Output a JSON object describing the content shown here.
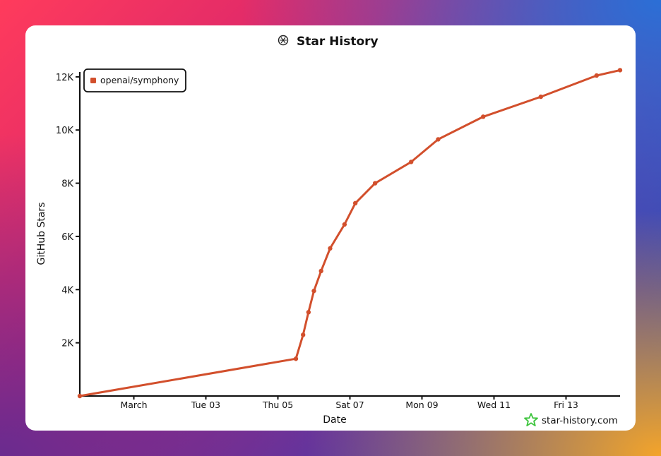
{
  "chart_data": {
    "type": "line",
    "title": "Star History",
    "xlabel": "Date",
    "ylabel": "GitHub Stars",
    "ylim": [
      0,
      12500
    ],
    "xlim": [
      0,
      15
    ],
    "yticks": [
      {
        "value": 2000,
        "label": "2K"
      },
      {
        "value": 4000,
        "label": "4K"
      },
      {
        "value": 6000,
        "label": "6K"
      },
      {
        "value": 8000,
        "label": "8K"
      },
      {
        "value": 10000,
        "label": "10K"
      },
      {
        "value": 12000,
        "label": "12K"
      }
    ],
    "xticks": [
      {
        "value": 1.5,
        "label": "March"
      },
      {
        "value": 3.5,
        "label": "Tue 03"
      },
      {
        "value": 5.5,
        "label": "Thu 05"
      },
      {
        "value": 7.5,
        "label": "Sat 07"
      },
      {
        "value": 9.5,
        "label": "Mon 09"
      },
      {
        "value": 11.5,
        "label": "Wed 11"
      },
      {
        "value": 13.5,
        "label": "Fri 13"
      }
    ],
    "legend": "top-left",
    "series": [
      {
        "name": "openai/symphony",
        "color": "#d24f2c",
        "points": [
          {
            "x": 0.0,
            "y": 0
          },
          {
            "x": 6.0,
            "y": 1400
          },
          {
            "x": 6.2,
            "y": 2300
          },
          {
            "x": 6.35,
            "y": 3150
          },
          {
            "x": 6.5,
            "y": 3950
          },
          {
            "x": 6.7,
            "y": 4700
          },
          {
            "x": 6.95,
            "y": 5550
          },
          {
            "x": 7.35,
            "y": 6450
          },
          {
            "x": 7.65,
            "y": 7250
          },
          {
            "x": 8.2,
            "y": 8000
          },
          {
            "x": 9.2,
            "y": 8800
          },
          {
            "x": 9.95,
            "y": 9650
          },
          {
            "x": 11.2,
            "y": 10500
          },
          {
            "x": 12.8,
            "y": 11250
          },
          {
            "x": 14.35,
            "y": 12050
          },
          {
            "x": 15.0,
            "y": 12250
          }
        ]
      }
    ]
  },
  "watermark": {
    "text": "star-history.com",
    "icon": "star-icon",
    "color": "#3cc43c"
  },
  "title_icon": "openai-logo-icon"
}
